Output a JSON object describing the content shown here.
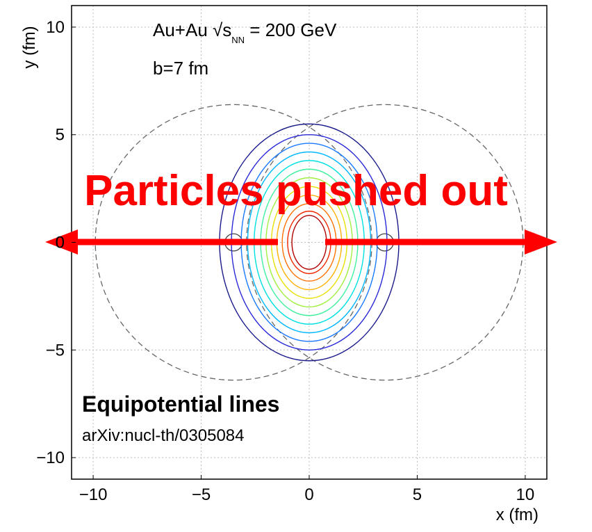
{
  "chart_data": {
    "type": "contour",
    "xlim": [
      -11,
      11
    ],
    "ylim": [
      -11,
      11
    ],
    "xticks": [
      {
        "value": -10,
        "label": "−10"
      },
      {
        "value": -5,
        "label": "−5"
      },
      0,
      5,
      10
    ],
    "yticks": [
      {
        "value": -10,
        "label": "−10"
      },
      {
        "value": -5,
        "label": "−5"
      },
      0,
      5,
      10
    ],
    "xlabel": "x (fm)",
    "ylabel": "y (fm)",
    "grid": true,
    "contours": [
      {
        "rx": 4.15,
        "ry": 5.5,
        "color": "#1a1a8c"
      },
      {
        "rx": 3.6,
        "ry": 5.0,
        "color": "#2a2ad8"
      },
      {
        "rx": 3.15,
        "ry": 4.6,
        "color": "#1a7aff"
      },
      {
        "rx": 2.85,
        "ry": 4.2,
        "color": "#00b8ff"
      },
      {
        "rx": 2.55,
        "ry": 3.8,
        "color": "#00e0e0"
      },
      {
        "rx": 2.25,
        "ry": 3.4,
        "color": "#40f0a0"
      },
      {
        "rx": 2.0,
        "ry": 3.0,
        "color": "#a0f040"
      },
      {
        "rx": 1.75,
        "ry": 2.6,
        "color": "#e8e000"
      },
      {
        "rx": 1.5,
        "ry": 2.2,
        "color": "#ffb000"
      },
      {
        "rx": 1.25,
        "ry": 1.8,
        "color": "#ff7000"
      },
      {
        "rx": 1.0,
        "ry": 1.45,
        "color": "#f02800"
      },
      {
        "rx": 0.8,
        "ry": 1.25,
        "color": "#b00000"
      }
    ],
    "circles": [
      {
        "cx": -3.5,
        "cy": 0,
        "r": 6.4,
        "dashed": true
      },
      {
        "cx": 3.5,
        "cy": 0,
        "r": 6.4,
        "dashed": true
      },
      {
        "cx": -3.5,
        "cy": 0,
        "r": 0.4,
        "dashed": false
      },
      {
        "cx": 3.5,
        "cy": 0,
        "r": 0.4,
        "dashed": false
      }
    ],
    "annotations": {
      "system": "Au+Au √s",
      "system_sub": "NN",
      "energy": " = 200 GeV",
      "impact": "b=7 fm",
      "push": "Particles pushed out",
      "caption": "Equipotential lines",
      "reference": "arXiv:nucl-th/0305084"
    }
  }
}
